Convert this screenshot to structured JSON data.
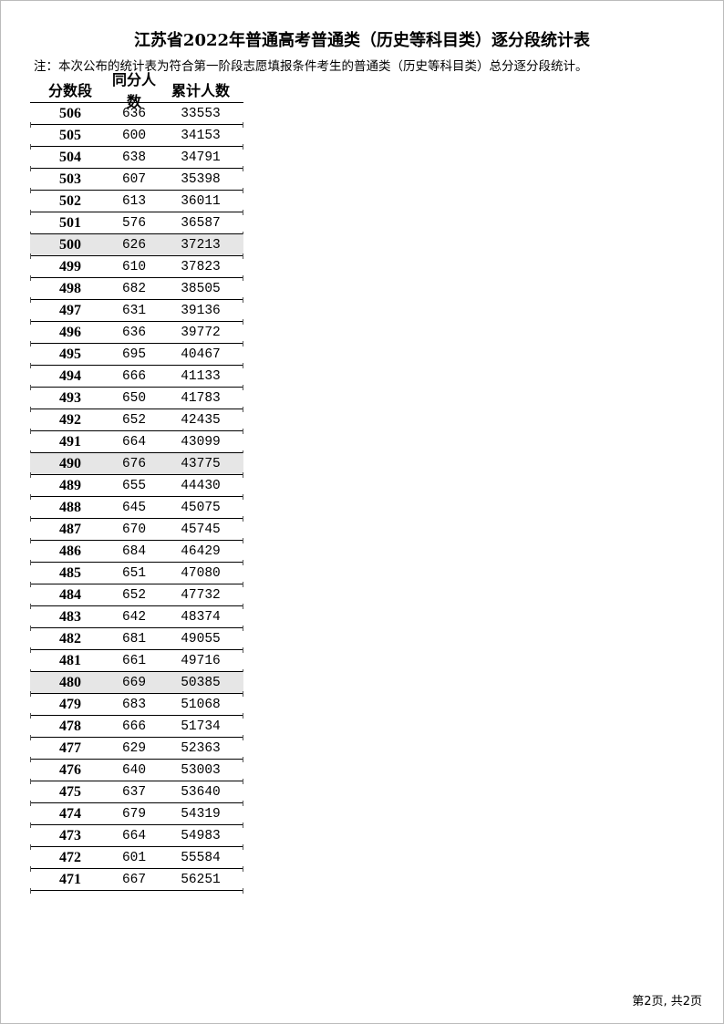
{
  "title": "江苏省2022年普通高考普通类（历史等科目类）逐分段统计表",
  "note": "注：本次公布的统计表为符合第一阶段志愿填报条件考生的普通类（历史等科目类）总分逐分段统计。",
  "headers": [
    "分数段",
    "同分人数",
    "累计人数"
  ],
  "rows": [
    [
      "506",
      "636",
      "33553"
    ],
    [
      "505",
      "600",
      "34153"
    ],
    [
      "504",
      "638",
      "34791"
    ],
    [
      "503",
      "607",
      "35398"
    ],
    [
      "502",
      "613",
      "36011"
    ],
    [
      "501",
      "576",
      "36587"
    ],
    [
      "500",
      "626",
      "37213"
    ],
    [
      "499",
      "610",
      "37823"
    ],
    [
      "498",
      "682",
      "38505"
    ],
    [
      "497",
      "631",
      "39136"
    ],
    [
      "496",
      "636",
      "39772"
    ],
    [
      "495",
      "695",
      "40467"
    ],
    [
      "494",
      "666",
      "41133"
    ],
    [
      "493",
      "650",
      "41783"
    ],
    [
      "492",
      "652",
      "42435"
    ],
    [
      "491",
      "664",
      "43099"
    ],
    [
      "490",
      "676",
      "43775"
    ],
    [
      "489",
      "655",
      "44430"
    ],
    [
      "488",
      "645",
      "45075"
    ],
    [
      "487",
      "670",
      "45745"
    ],
    [
      "486",
      "684",
      "46429"
    ],
    [
      "485",
      "651",
      "47080"
    ],
    [
      "484",
      "652",
      "47732"
    ],
    [
      "483",
      "642",
      "48374"
    ],
    [
      "482",
      "681",
      "49055"
    ],
    [
      "481",
      "661",
      "49716"
    ],
    [
      "480",
      "669",
      "50385"
    ],
    [
      "479",
      "683",
      "51068"
    ],
    [
      "478",
      "666",
      "51734"
    ],
    [
      "477",
      "629",
      "52363"
    ],
    [
      "476",
      "640",
      "53003"
    ],
    [
      "475",
      "637",
      "53640"
    ],
    [
      "474",
      "679",
      "54319"
    ],
    [
      "473",
      "664",
      "54983"
    ],
    [
      "472",
      "601",
      "55584"
    ],
    [
      "471",
      "667",
      "56251"
    ]
  ],
  "highlighted_scores": [
    "500",
    "490",
    "480"
  ],
  "highlight_color": "#e6e6e6",
  "footer": "第2页, 共2页"
}
